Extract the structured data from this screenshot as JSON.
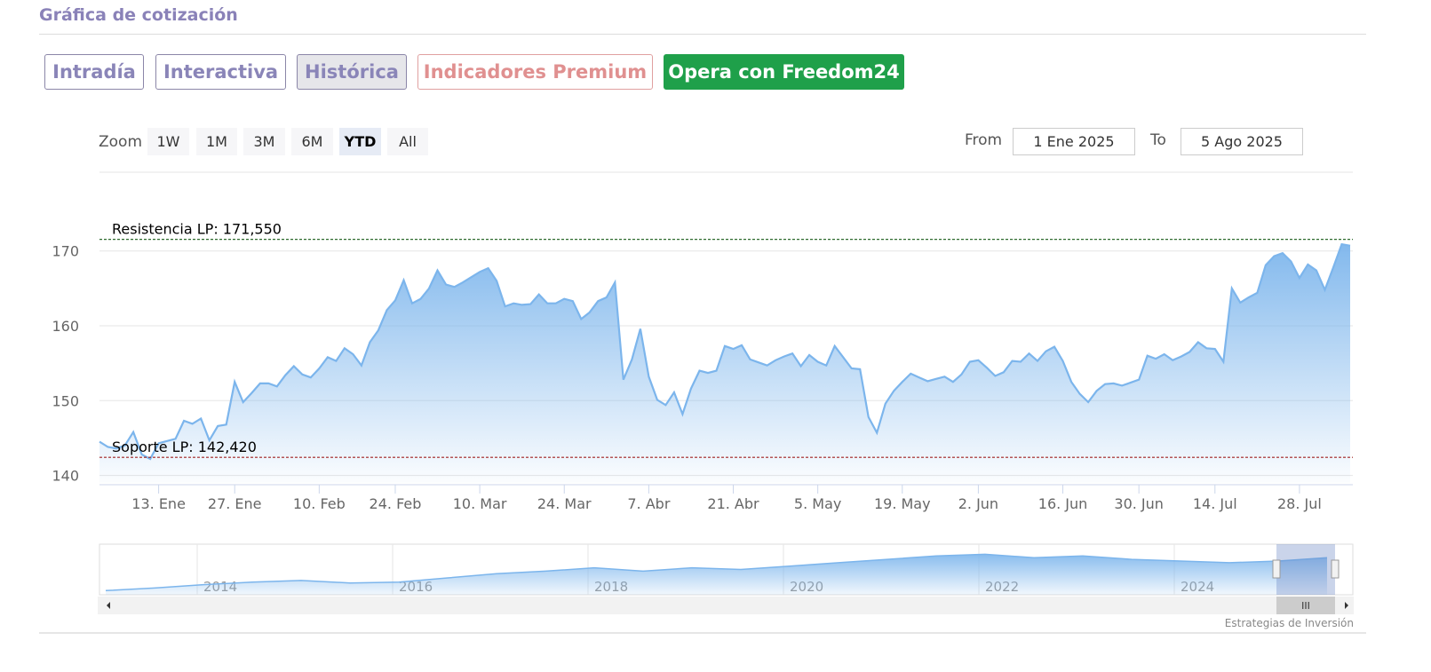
{
  "header": {
    "title": "Gráfica de cotización"
  },
  "tabs": [
    "Intradía",
    "Interactiva",
    "Histórica",
    "Indicadores Premium",
    "Opera con Freedom24"
  ],
  "zoom": {
    "label": "Zoom",
    "buttons": [
      "1W",
      "1M",
      "3M",
      "6M",
      "YTD",
      "All"
    ],
    "active": 4
  },
  "range": {
    "from_label": "From",
    "from": "1 Ene 2025",
    "to_label": "To",
    "to": "5 Ago 2025"
  },
  "chart_data": {
    "type": "area",
    "color": "#7cb5ec",
    "categories": [
      null,
      null,
      null,
      null,
      null,
      null,
      null,
      "13. Ene",
      null,
      null,
      null,
      null,
      null,
      null,
      null,
      null,
      "27. Ene",
      null,
      null,
      null,
      null,
      null,
      null,
      null,
      null,
      null,
      "10. Feb",
      null,
      null,
      null,
      null,
      null,
      null,
      null,
      null,
      "24. Feb",
      null,
      null,
      null,
      null,
      null,
      null,
      null,
      null,
      null,
      "10. Mar",
      null,
      null,
      null,
      null,
      null,
      null,
      null,
      null,
      null,
      "24. Mar",
      null,
      null,
      null,
      null,
      null,
      null,
      null,
      null,
      null,
      "7. Abr",
      null,
      null,
      null,
      null,
      null,
      null,
      null,
      null,
      null,
      "21. Abr",
      null,
      null,
      null,
      null,
      null,
      null,
      null,
      null,
      null,
      "5. May",
      null,
      null,
      null,
      null,
      null,
      null,
      null,
      null,
      null,
      "19. May",
      null,
      null,
      null,
      null,
      null,
      null,
      null,
      null,
      "2. Jun",
      null,
      null,
      null,
      null,
      null,
      null,
      null,
      null,
      null,
      "16. Jun",
      null,
      null,
      null,
      null,
      null,
      null,
      null,
      null,
      "30. Jun",
      null,
      null,
      null,
      null,
      null,
      null,
      null,
      null,
      "14. Jul",
      null,
      null,
      null,
      null,
      null,
      null,
      null,
      null,
      null,
      "28. Jul",
      null,
      null,
      null,
      null,
      null,
      null
    ],
    "values": [
      144.5,
      143.8,
      143.6,
      144.0,
      145.8,
      142.8,
      142.2,
      144.3,
      144.6,
      144.9,
      147.3,
      146.9,
      147.6,
      144.7,
      146.6,
      146.8,
      152.5,
      149.8,
      151.0,
      152.3,
      152.3,
      151.9,
      153.4,
      154.6,
      153.5,
      153.1,
      154.3,
      155.8,
      155.3,
      157.0,
      156.2,
      154.7,
      157.8,
      159.4,
      162.1,
      163.4,
      166.1,
      163.0,
      163.6,
      165.0,
      167.4,
      165.5,
      165.2,
      165.8,
      166.5,
      167.2,
      167.7,
      166.0,
      162.6,
      163.0,
      162.8,
      162.9,
      164.2,
      163.0,
      163.0,
      163.6,
      163.3,
      160.9,
      161.8,
      163.3,
      163.8,
      165.8,
      152.8,
      155.5,
      159.6,
      153.2,
      150.1,
      149.4,
      151.1,
      148.2,
      151.6,
      154.0,
      153.7,
      154.0,
      157.3,
      156.9,
      157.4,
      155.5,
      155.1,
      154.7,
      155.4,
      155.9,
      156.3,
      154.6,
      156.1,
      155.2,
      154.7,
      157.3,
      155.8,
      154.3,
      154.2,
      147.8,
      145.7,
      149.6,
      151.3,
      152.5,
      153.6,
      153.1,
      152.6,
      152.9,
      153.2,
      152.5,
      153.5,
      155.2,
      155.4,
      154.4,
      153.3,
      153.8,
      155.3,
      155.2,
      156.3,
      155.3,
      156.6,
      157.2,
      155.3,
      152.5,
      150.9,
      149.8,
      151.3,
      152.2,
      152.3,
      152.0,
      152.4,
      152.8,
      156.0,
      155.6,
      156.2,
      155.4,
      155.9,
      156.5,
      157.8,
      157.0,
      156.9,
      155.2,
      165.0,
      163.1,
      163.8,
      164.4,
      168.1,
      169.3,
      169.7,
      168.6,
      166.4,
      168.2,
      167.4,
      164.8,
      167.8,
      170.9,
      170.7
    ],
    "ylim": [
      139,
      174
    ],
    "yticks": [
      140,
      150,
      160,
      170
    ],
    "grid": true,
    "annotations": [
      {
        "label": "Resistencia LP: 171,550",
        "value": 171.55,
        "color": "#2e6b2e"
      },
      {
        "label": "Soporte LP: 142,420",
        "value": 142.42,
        "color": "#a02020"
      }
    ]
  },
  "navigator": {
    "categories": [
      null,
      null,
      "2014",
      null,
      null,
      null,
      "2016",
      null,
      null,
      null,
      "2018",
      null,
      null,
      null,
      "2020",
      null,
      null,
      null,
      "2022",
      null,
      null,
      null,
      "2024",
      null,
      null,
      null
    ],
    "values": [
      5,
      8,
      12,
      15,
      17,
      14,
      15,
      20,
      25,
      28,
      32,
      28,
      32,
      30,
      34,
      38,
      42,
      46,
      48,
      44,
      46,
      42,
      40,
      38,
      40,
      44
    ],
    "ylim": [
      0,
      60
    ]
  },
  "credit": "Estrategias de Inversión"
}
